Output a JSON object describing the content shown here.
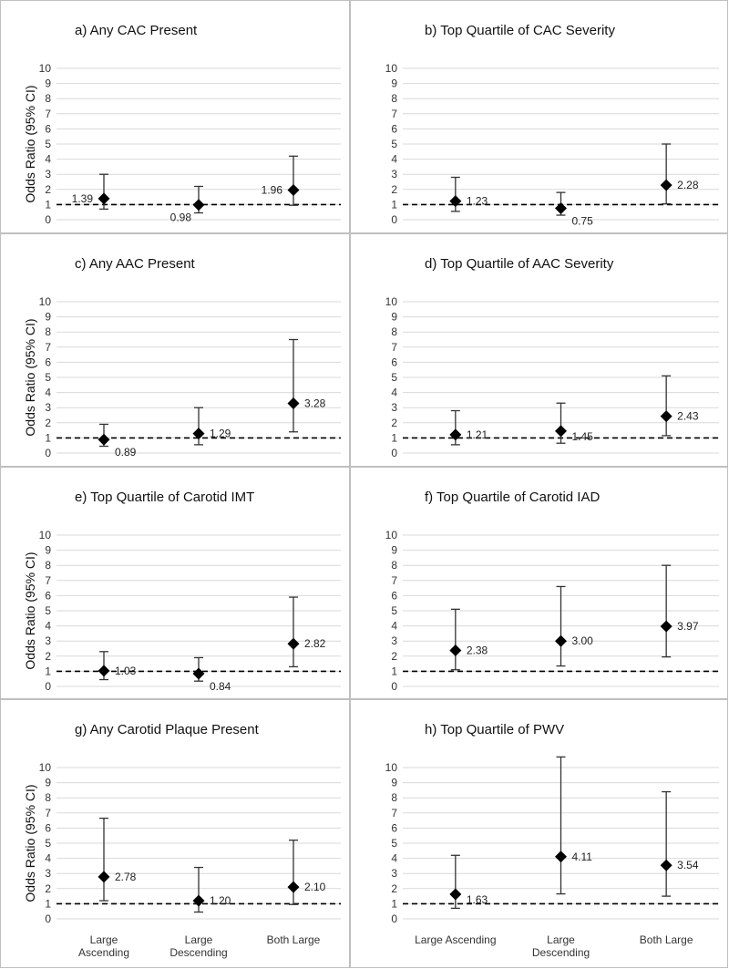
{
  "chart_data": {
    "type": "scatter",
    "y_axis_label": "Odds Ratio (95% CI)",
    "y_ticks": [
      "0",
      "1",
      "2",
      "3",
      "4",
      "5",
      "6",
      "7",
      "8",
      "9",
      "10"
    ],
    "ylim": [
      0,
      10
    ],
    "reference_line": 1,
    "categories": [
      {
        "id": "la",
        "lines_left": [
          "Large",
          "Ascending"
        ],
        "lines_right": [
          "Large Ascending"
        ]
      },
      {
        "id": "ld",
        "lines_left": [
          "Large",
          "Descending"
        ],
        "lines_right": [
          "Large",
          "Descending"
        ]
      },
      {
        "id": "bl",
        "lines_left": [
          "Both Large"
        ],
        "lines_right": [
          "Both Large"
        ]
      }
    ],
    "panels": [
      {
        "title": "a) Any CAC Present",
        "points": [
          {
            "or": 1.39,
            "lo": 0.7,
            "hi": 3.0,
            "label": "1.39",
            "label_side": "left"
          },
          {
            "or": 0.98,
            "lo": 0.45,
            "hi": 2.2,
            "label": "0.98",
            "label_side": "below-left"
          },
          {
            "or": 1.96,
            "lo": 0.95,
            "hi": 4.2,
            "label": "1.96",
            "label_side": "left"
          }
        ]
      },
      {
        "title": "b) Top Quartile of CAC Severity",
        "points": [
          {
            "or": 1.23,
            "lo": 0.55,
            "hi": 2.8,
            "label": "1.23",
            "label_side": "right"
          },
          {
            "or": 0.75,
            "lo": 0.3,
            "hi": 1.8,
            "label": "0.75",
            "label_side": "below-right"
          },
          {
            "or": 2.28,
            "lo": 1.05,
            "hi": 5.0,
            "label": "2.28",
            "label_side": "right"
          }
        ]
      },
      {
        "title": "c) Any AAC Present",
        "points": [
          {
            "or": 0.89,
            "lo": 0.45,
            "hi": 1.9,
            "label": "0.89",
            "label_side": "below-right"
          },
          {
            "or": 1.29,
            "lo": 0.55,
            "hi": 3.0,
            "label": "1.29",
            "label_side": "right"
          },
          {
            "or": 3.28,
            "lo": 1.4,
            "hi": 7.5,
            "label": "3.28",
            "label_side": "right"
          }
        ]
      },
      {
        "title": "d) Top Quartile of AAC Severity",
        "points": [
          {
            "or": 1.21,
            "lo": 0.55,
            "hi": 2.8,
            "label": "1.21",
            "label_side": "right"
          },
          {
            "or": 1.45,
            "lo": 0.65,
            "hi": 3.3,
            "label": "1.45",
            "label_side": "right-low"
          },
          {
            "or": 2.43,
            "lo": 1.15,
            "hi": 5.1,
            "label": "2.43",
            "label_side": "right"
          }
        ]
      },
      {
        "title": "e) Top Quartile of Carotid IMT",
        "points": [
          {
            "or": 1.03,
            "lo": 0.45,
            "hi": 2.3,
            "label": "1.03",
            "label_side": "right"
          },
          {
            "or": 0.84,
            "lo": 0.35,
            "hi": 1.9,
            "label": "0.84",
            "label_side": "below-right"
          },
          {
            "or": 2.82,
            "lo": 1.3,
            "hi": 5.9,
            "label": "2.82",
            "label_side": "right"
          }
        ]
      },
      {
        "title": "f) Top Quartile of Carotid IAD",
        "points": [
          {
            "or": 2.38,
            "lo": 1.1,
            "hi": 5.1,
            "label": "2.38",
            "label_side": "right"
          },
          {
            "or": 3.0,
            "lo": 1.35,
            "hi": 6.6,
            "label": "3.00",
            "label_side": "right"
          },
          {
            "or": 3.97,
            "lo": 1.95,
            "hi": 8.0,
            "label": "3.97",
            "label_side": "right"
          }
        ]
      },
      {
        "title": "g) Any Carotid Plaque Present",
        "points": [
          {
            "or": 2.78,
            "lo": 1.2,
            "hi": 6.65,
            "label": "2.78",
            "label_side": "right"
          },
          {
            "or": 1.2,
            "lo": 0.45,
            "hi": 3.4,
            "label": "1.20",
            "label_side": "right"
          },
          {
            "or": 2.1,
            "lo": 0.95,
            "hi": 5.2,
            "label": "2.10",
            "label_side": "right"
          }
        ]
      },
      {
        "title": "h) Top Quartile of PWV",
        "points": [
          {
            "or": 1.63,
            "lo": 0.7,
            "hi": 4.2,
            "label": "1.63",
            "label_side": "right-low"
          },
          {
            "or": 4.11,
            "lo": 1.65,
            "hi": 10.7,
            "label": "4.11",
            "label_side": "right"
          },
          {
            "or": 3.54,
            "lo": 1.5,
            "hi": 8.4,
            "label": "3.54",
            "label_side": "right"
          }
        ]
      }
    ]
  }
}
